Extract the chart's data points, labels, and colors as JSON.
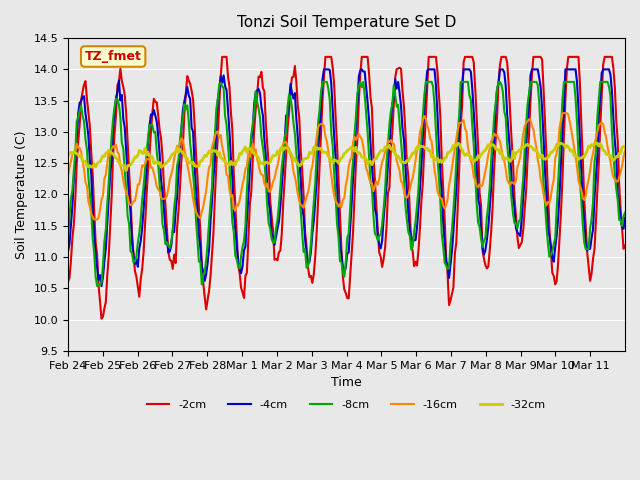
{
  "title": "Tonzi Soil Temperature Set D",
  "xlabel": "Time",
  "ylabel": "Soil Temperature (C)",
  "ylim": [
    9.5,
    14.5
  ],
  "background_color": "#e8e8e8",
  "plot_bg_color": "#e8e8e8",
  "grid_color": "white",
  "annotation_text": "TZ_fmet",
  "annotation_color": "#cc0000",
  "annotation_bg": "#ffffcc",
  "annotation_border": "#cc8800",
  "xtick_labels": [
    "Feb 24",
    "Feb 25",
    "Feb 26",
    "Feb 27",
    "Feb 28",
    "Mar 1",
    "Mar 2",
    "Mar 3",
    "Mar 4",
    "Mar 5",
    "Mar 6",
    "Mar 7",
    "Mar 8",
    "Mar 9",
    "Mar 10",
    "Mar 11"
  ],
  "ytick_vals": [
    9.5,
    10.0,
    10.5,
    11.0,
    11.5,
    12.0,
    12.5,
    13.0,
    13.5,
    14.0,
    14.5
  ],
  "series": [
    {
      "label": "-2cm",
      "color": "#dd0000",
      "lw": 1.5
    },
    {
      "label": "-4cm",
      "color": "#0000cc",
      "lw": 1.5
    },
    {
      "label": "-8cm",
      "color": "#00aa00",
      "lw": 1.5
    },
    {
      "label": "-16cm",
      "color": "#ff8800",
      "lw": 1.5
    },
    {
      "label": "-32cm",
      "color": "#cccc00",
      "lw": 2.0
    }
  ]
}
